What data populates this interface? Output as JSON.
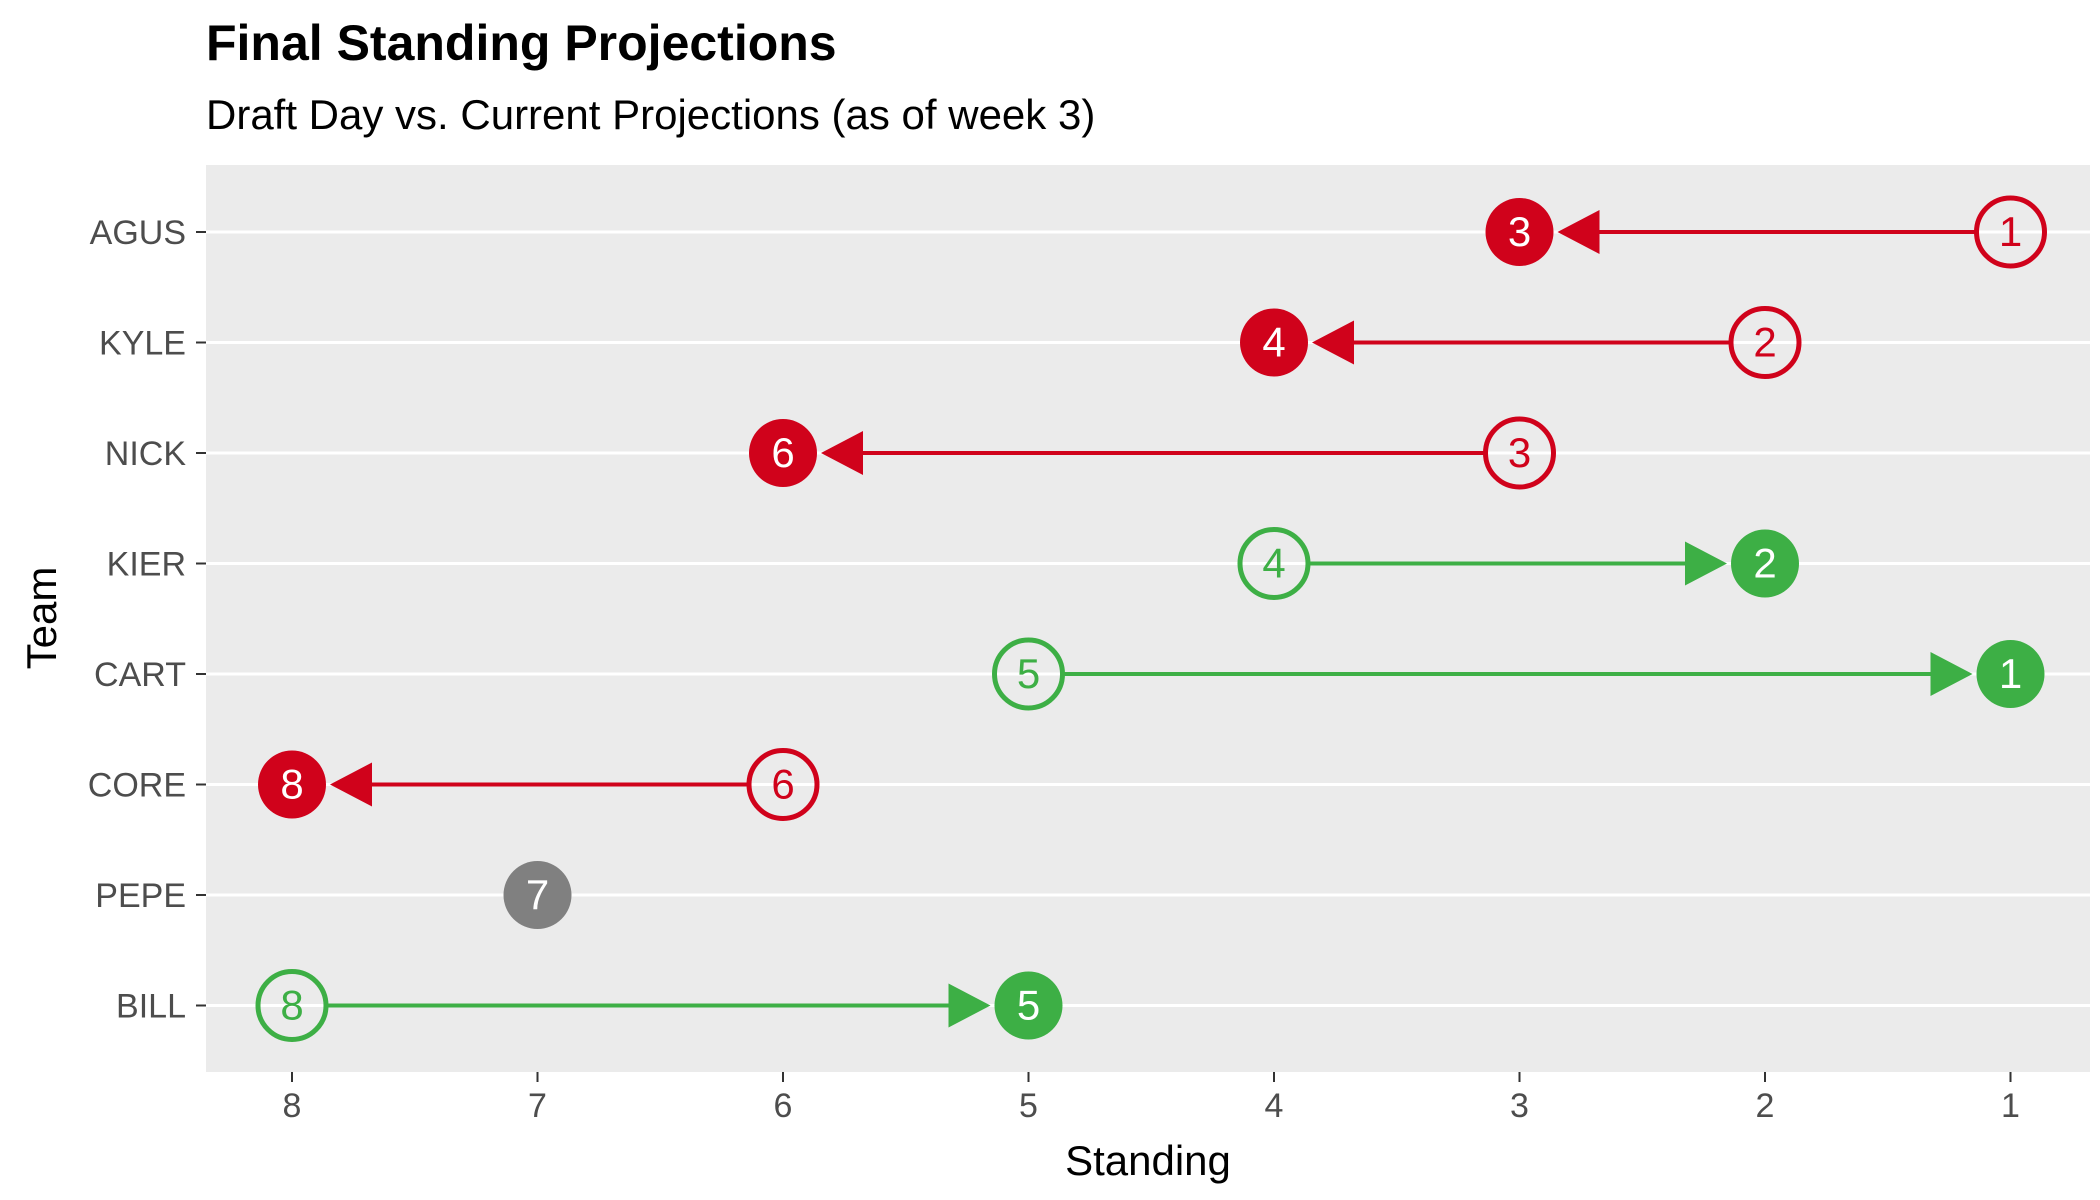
{
  "chart_data": {
    "type": "dumbbell-arrow",
    "title": "Final Standing Projections",
    "subtitle": "Draft Day vs. Current Projections (as of week 3)",
    "xlabel": "Standing",
    "ylabel": "Team",
    "x_reversed": true,
    "xlim": [
      8,
      1
    ],
    "x_ticks": [
      8,
      7,
      6,
      5,
      4,
      3,
      2,
      1
    ],
    "grid": true,
    "legend": "none",
    "colors": {
      "down": "#d0021b",
      "up": "#3daf45",
      "same": "#808080",
      "panel": "#ebebeb",
      "grid": "#ffffff"
    },
    "teams": [
      {
        "name": "AGUS",
        "draft": 1,
        "current": 3
      },
      {
        "name": "KYLE",
        "draft": 2,
        "current": 4
      },
      {
        "name": "NICK",
        "draft": 3,
        "current": 6
      },
      {
        "name": "KIER",
        "draft": 4,
        "current": 2
      },
      {
        "name": "CART",
        "draft": 5,
        "current": 1
      },
      {
        "name": "CORE",
        "draft": 6,
        "current": 8
      },
      {
        "name": "PEPE",
        "draft": 7,
        "current": 7
      },
      {
        "name": "BILL",
        "draft": 8,
        "current": 5
      }
    ]
  }
}
